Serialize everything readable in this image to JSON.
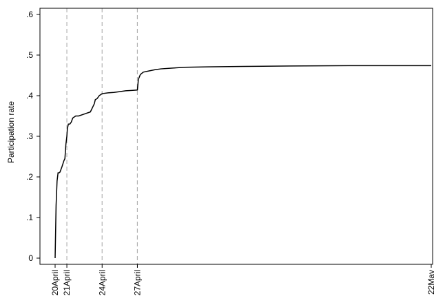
{
  "chart_data": {
    "type": "line",
    "title": "",
    "xlabel": "",
    "ylabel": "Participation rate",
    "ylim": [
      0,
      0.6
    ],
    "yticks": [
      {
        "value": 0,
        "label": "0"
      },
      {
        "value": 0.1,
        "label": ".1"
      },
      {
        "value": 0.2,
        "label": ".2"
      },
      {
        "value": 0.3,
        "label": ".3"
      },
      {
        "value": 0.4,
        "label": ".4"
      },
      {
        "value": 0.5,
        "label": ".5"
      },
      {
        "value": 0.6,
        "label": ".6"
      }
    ],
    "xlim": [
      "2020-04-20",
      "2020-05-22"
    ],
    "xticks": [
      {
        "value": "2020-04-20",
        "label": "20April"
      },
      {
        "value": "2020-04-21",
        "label": "21April"
      },
      {
        "value": "2020-04-24",
        "label": "24April"
      },
      {
        "value": "2020-04-27",
        "label": "27April"
      },
      {
        "value": "2020-05-22",
        "label": "22May"
      }
    ],
    "reference_lines": [
      "2020-04-21",
      "2020-04-24",
      "2020-04-27"
    ],
    "grid": false,
    "line_color": "#000000",
    "reference_line_color": "#b4b4b4",
    "series": [
      {
        "x": [
          "2020-04-20 00:00",
          "2020-04-20 02:00",
          "2020-04-20 04:00",
          "2020-04-20 06:00",
          "2020-04-20 08:00",
          "2020-04-20 10:00",
          "2020-04-20 14:00",
          "2020-04-20 18:00",
          "2020-04-20 20:00",
          "2020-04-20 22:00",
          "2020-04-21 00:00",
          "2020-04-21 01:00",
          "2020-04-21 03:00",
          "2020-04-21 06:00",
          "2020-04-21 09:00",
          "2020-04-21 12:00",
          "2020-04-21 18:00",
          "2020-04-22 00:00",
          "2020-04-22 12:00",
          "2020-04-23 00:00",
          "2020-04-23 08:00",
          "2020-04-23 10:00",
          "2020-04-23 14:00",
          "2020-04-23 18:00",
          "2020-04-24 00:00",
          "2020-04-24 12:00",
          "2020-04-25 00:00",
          "2020-04-25 12:00",
          "2020-04-26 00:00",
          "2020-04-26 12:00",
          "2020-04-27 00:00",
          "2020-04-27 02:00",
          "2020-04-27 06:00",
          "2020-04-27 12:00",
          "2020-04-28 00:00",
          "2020-04-28 12:00",
          "2020-04-29 00:00",
          "2020-04-30 00:00",
          "2020-05-01 00:00",
          "2020-05-03 00:00",
          "2020-05-06 00:00",
          "2020-05-10 00:00",
          "2020-05-15 00:00",
          "2020-05-22 00:00"
        ],
        "y": [
          0.0,
          0.13,
          0.19,
          0.21,
          0.21,
          0.212,
          0.225,
          0.24,
          0.245,
          0.28,
          0.3,
          0.318,
          0.33,
          0.33,
          0.335,
          0.345,
          0.35,
          0.35,
          0.355,
          0.36,
          0.38,
          0.39,
          0.393,
          0.4,
          0.405,
          0.407,
          0.408,
          0.41,
          0.412,
          0.413,
          0.414,
          0.44,
          0.452,
          0.458,
          0.461,
          0.464,
          0.466,
          0.468,
          0.47,
          0.471,
          0.472,
          0.473,
          0.474,
          0.474
        ]
      }
    ]
  }
}
